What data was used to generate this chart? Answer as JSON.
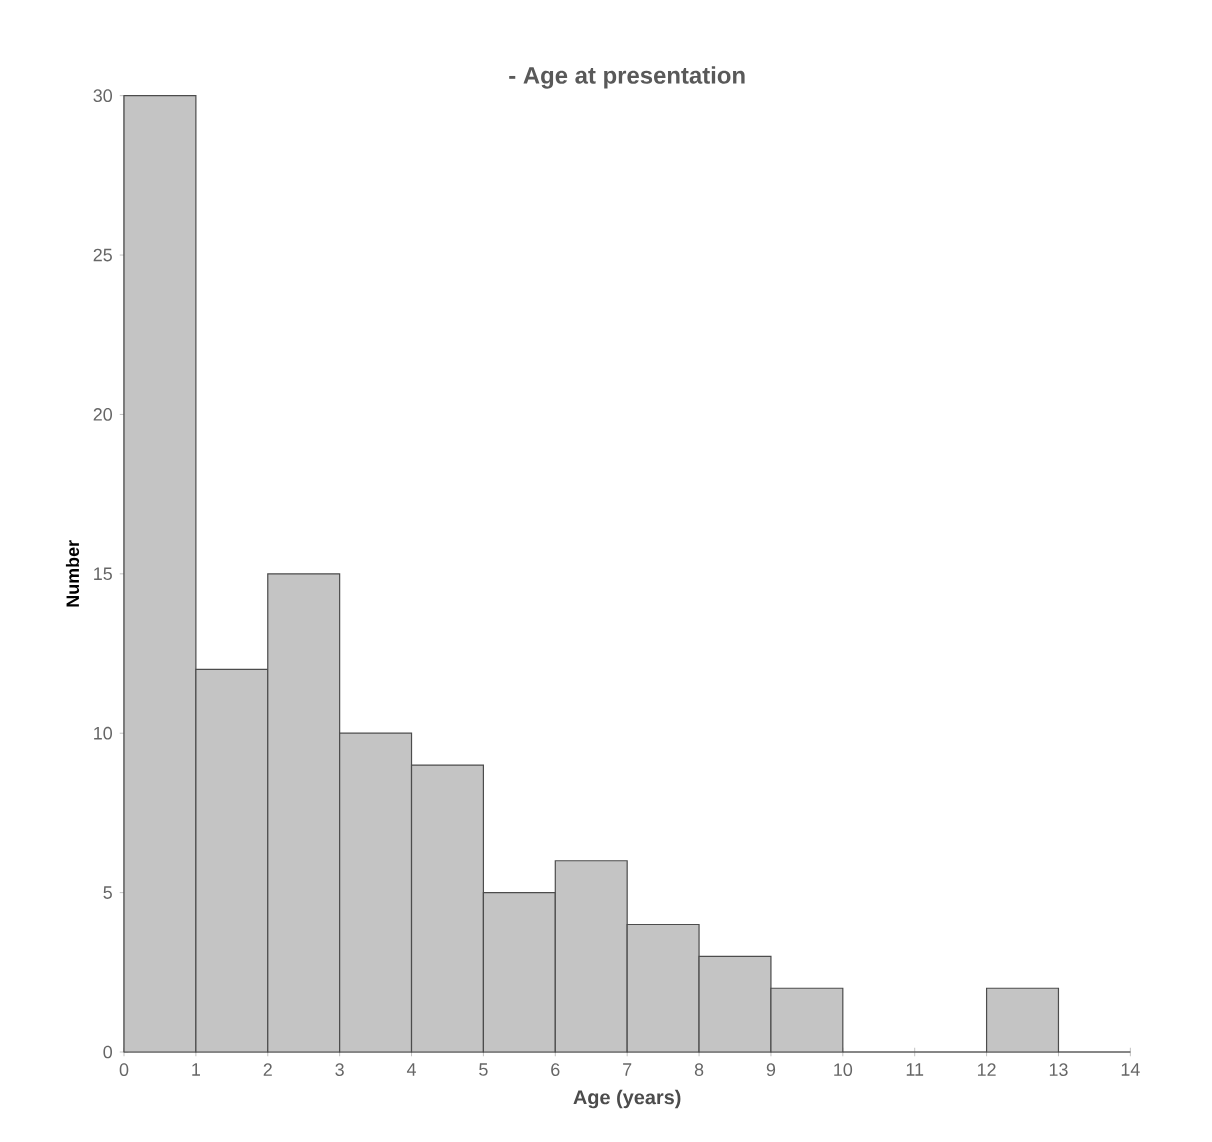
{
  "chart_data": {
    "type": "histogram",
    "title": "- Age at presentation",
    "xlabel": "Age (years)",
    "ylabel": "Number",
    "bins": [
      0,
      1,
      2,
      3,
      4,
      5,
      6,
      7,
      8,
      9,
      10,
      11,
      12,
      13,
      14
    ],
    "values": [
      30,
      12,
      15,
      10,
      9,
      5,
      6,
      4,
      3,
      2,
      0,
      0,
      2,
      0
    ],
    "color": "#c4c4c4",
    "xlim": [
      0,
      14
    ],
    "ylim": [
      0,
      30
    ],
    "xticks": [
      0,
      1,
      2,
      3,
      4,
      5,
      6,
      7,
      8,
      9,
      10,
      11,
      12,
      13,
      14
    ],
    "yticks": [
      0,
      5,
      10,
      15,
      20,
      25,
      30
    ]
  }
}
